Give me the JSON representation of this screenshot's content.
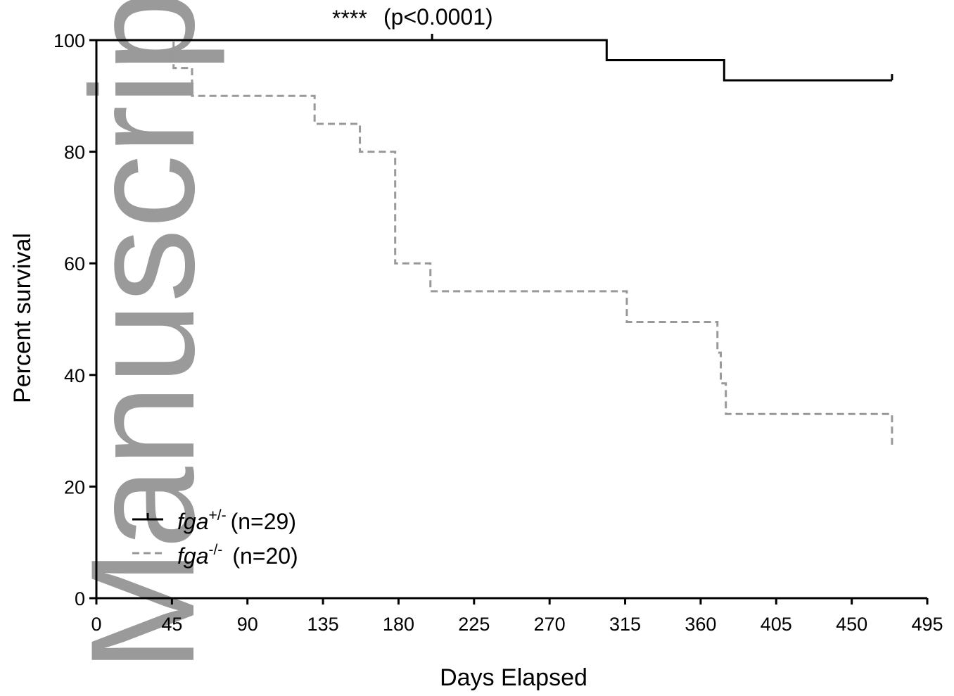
{
  "chart_data": {
    "type": "line",
    "subtype": "kaplan-meier-step",
    "xlabel": "Days Elapsed",
    "ylabel": "Percent survival",
    "xlim": [
      0,
      495
    ],
    "ylim": [
      0,
      100
    ],
    "xticks": [
      0,
      45,
      90,
      135,
      180,
      225,
      270,
      315,
      360,
      405,
      450,
      495
    ],
    "yticks": [
      0,
      20,
      40,
      60,
      80,
      100
    ],
    "grid": false,
    "legend_position": "bottom-left",
    "annotation": {
      "stars": "****",
      "text": "(p<0.0001)"
    },
    "series": [
      {
        "name_italic": "fga",
        "name_sup": "+/-",
        "name_n": "(n=29)",
        "color": "#000000",
        "dash": "solid",
        "steps": [
          [
            0,
            100
          ],
          [
            304,
            96.4
          ],
          [
            374,
            92.8
          ],
          [
            474,
            92.8
          ]
        ],
        "censors": [
          [
            200,
            100
          ],
          [
            474,
            92.8
          ]
        ]
      },
      {
        "name_italic": "fga",
        "name_sup": "-/-",
        "name_n": "(n=20)",
        "color": "#999999",
        "dash": "dashed",
        "steps": [
          [
            0,
            100
          ],
          [
            46,
            95
          ],
          [
            57,
            90
          ],
          [
            130,
            85
          ],
          [
            157,
            80
          ],
          [
            178,
            60
          ],
          [
            199,
            55
          ],
          [
            316,
            49.5
          ],
          [
            370,
            44
          ],
          [
            372,
            38.5
          ],
          [
            375,
            33
          ],
          [
            474,
            27.5
          ]
        ],
        "censors": []
      }
    ]
  },
  "watermark": "Manuscript"
}
